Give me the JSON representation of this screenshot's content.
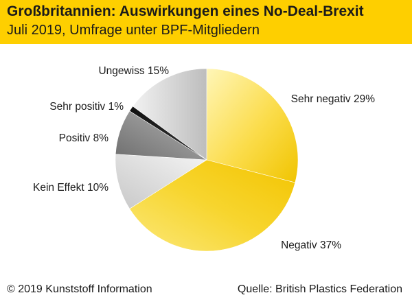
{
  "header": {
    "title": "Großbritannien: Auswirkungen eines No-Deal-Brexit",
    "subtitle": "Juli 2019, Umfrage unter BPF-Mitgliedern"
  },
  "footer": {
    "copyright": "© 2019 Kunststoff Information",
    "source": "Quelle: British Plastics Federation"
  },
  "chart_data": {
    "type": "pie",
    "title": "Großbritannien: Auswirkungen eines No-Deal-Brexit",
    "subtitle": "Juli 2019, Umfrage unter BPF-Mitgliedern",
    "slices": [
      {
        "label": "Sehr negativ",
        "value": 29,
        "display": "Sehr negativ 29%",
        "color": "#fad63a"
      },
      {
        "label": "Negativ",
        "value": 37,
        "display": "Negativ 37%",
        "color": "#f3c823"
      },
      {
        "label": "Kein Effekt",
        "value": 10,
        "display": "Kein Effekt 10%",
        "color": "#dcdcdc"
      },
      {
        "label": "Positiv",
        "value": 8,
        "display": "Positiv 8%",
        "color": "#8a8a8a"
      },
      {
        "label": "Sehr positiv",
        "value": 1,
        "display": "Sehr positiv 1%",
        "color": "#1e1e1e"
      },
      {
        "label": "Ungewiss",
        "value": 15,
        "display": "Ungewiss 15%",
        "color": "#c6c6c6"
      }
    ],
    "start_angle": "12 o'clock",
    "direction": "clockwise",
    "legend": "none (labels beside slices)"
  }
}
